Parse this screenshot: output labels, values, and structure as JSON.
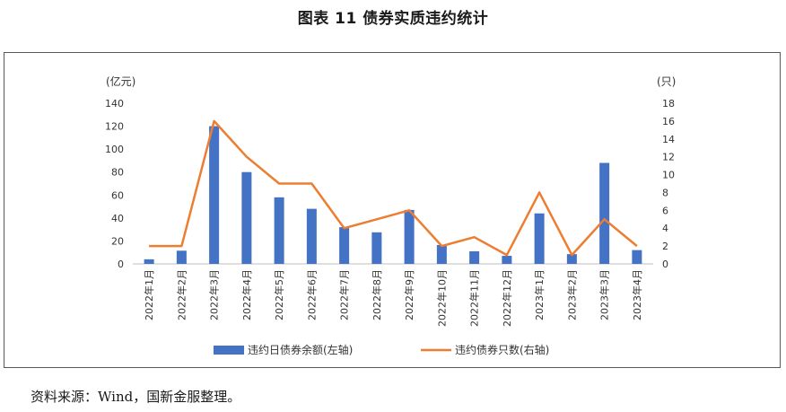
{
  "title": "图表 11 债券实质违约统计",
  "source": "资料来源：Wind，国新金服整理。",
  "colors": {
    "bar": "#4472C4",
    "line": "#ED7D31",
    "axis": "#bfbfbf"
  },
  "chart_data": {
    "type": "bar",
    "categories": [
      "2022年1月",
      "2022年2月",
      "2022年3月",
      "2022年4月",
      "2022年5月",
      "2022年6月",
      "2022年7月",
      "2022年8月",
      "2022年9月",
      "2022年10月",
      "2022年11月",
      "2022年12月",
      "2023年1月",
      "2023年2月",
      "2023年3月",
      "2023年4月"
    ],
    "series": [
      {
        "name": "违约日债券余额(左轴)",
        "type": "bar",
        "axis": "left",
        "values": [
          4,
          11.5,
          120,
          80,
          58,
          48,
          32,
          27.5,
          47,
          16.5,
          11,
          7,
          44,
          8.5,
          88,
          12
        ]
      },
      {
        "name": "违约债券只数(右轴)",
        "type": "line",
        "axis": "right",
        "values": [
          2,
          2,
          16,
          12,
          9,
          9,
          4,
          5,
          6,
          2,
          3,
          1,
          8,
          1,
          5,
          2
        ]
      }
    ],
    "y_left": {
      "unit": "(亿元)",
      "ylim": [
        0,
        140
      ],
      "ticks": [
        "0",
        "20",
        "40",
        "60",
        "80",
        "100",
        "120",
        "140"
      ]
    },
    "y_right": {
      "unit": "(只)",
      "ylim": [
        0,
        18
      ],
      "ticks": [
        "0",
        "2",
        "4",
        "6",
        "8",
        "10",
        "12",
        "14",
        "16",
        "18"
      ]
    },
    "grid": false,
    "legend_position": "bottom"
  }
}
